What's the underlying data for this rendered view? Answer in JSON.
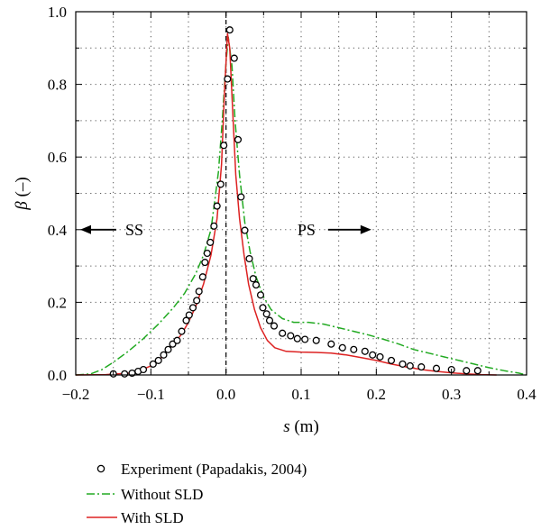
{
  "chart_data": {
    "type": "line",
    "xlabel": {
      "symbol": "s",
      "unit": " (m)"
    },
    "ylabel": {
      "symbol": "β",
      "unit": " (–)"
    },
    "xlim": [
      -0.2,
      0.4
    ],
    "ylim": [
      0,
      1.0
    ],
    "xticks": [
      -0.2,
      -0.1,
      0.0,
      0.1,
      0.2,
      0.3,
      0.4
    ],
    "yticks": [
      0.0,
      0.2,
      0.4,
      0.6,
      0.8,
      1.0
    ],
    "xtick_labels": [
      "−0.2",
      "−0.1",
      "0.0",
      "0.1",
      "0.2",
      "0.3",
      "0.4"
    ],
    "ytick_labels": [
      "0.0",
      "0.2",
      "0.4",
      "0.6",
      "0.8",
      "1.0"
    ],
    "grid": true,
    "legend_position": "bottom",
    "annotations": [
      {
        "text": "SS",
        "x": -0.11,
        "y": 0.4,
        "arrow": "left"
      },
      {
        "text": "PS",
        "x": 0.095,
        "y": 0.4,
        "arrow": "right"
      }
    ],
    "reference_line": {
      "x": 0.0,
      "style": "dashed"
    },
    "series": [
      {
        "name": "Experiment (Papadakis, 2004)",
        "kind": "markers",
        "color": "#000000",
        "points": [
          [
            -0.15,
            0.003
          ],
          [
            -0.135,
            0.003
          ],
          [
            -0.125,
            0.005
          ],
          [
            -0.117,
            0.01
          ],
          [
            -0.11,
            0.015
          ],
          [
            -0.097,
            0.03
          ],
          [
            -0.09,
            0.04
          ],
          [
            -0.083,
            0.055
          ],
          [
            -0.077,
            0.07
          ],
          [
            -0.071,
            0.085
          ],
          [
            -0.065,
            0.095
          ],
          [
            -0.059,
            0.12
          ],
          [
            -0.053,
            0.15
          ],
          [
            -0.049,
            0.165
          ],
          [
            -0.044,
            0.185
          ],
          [
            -0.039,
            0.205
          ],
          [
            -0.036,
            0.23
          ],
          [
            -0.031,
            0.27
          ],
          [
            -0.028,
            0.31
          ],
          [
            -0.025,
            0.335
          ],
          [
            -0.021,
            0.365
          ],
          [
            -0.016,
            0.41
          ],
          [
            -0.012,
            0.465
          ],
          [
            -0.007,
            0.525
          ],
          [
            -0.003,
            0.632
          ],
          [
            0.002,
            0.815
          ],
          [
            0.005,
            0.95
          ],
          [
            0.011,
            0.872
          ],
          [
            0.016,
            0.648
          ],
          [
            0.02,
            0.49
          ],
          [
            0.025,
            0.398
          ],
          [
            0.031,
            0.32
          ],
          [
            0.036,
            0.265
          ],
          [
            0.04,
            0.248
          ],
          [
            0.046,
            0.22
          ],
          [
            0.049,
            0.185
          ],
          [
            0.054,
            0.168
          ],
          [
            0.058,
            0.15
          ],
          [
            0.064,
            0.135
          ],
          [
            0.075,
            0.115
          ],
          [
            0.086,
            0.108
          ],
          [
            0.095,
            0.1
          ],
          [
            0.105,
            0.098
          ],
          [
            0.12,
            0.095
          ],
          [
            0.14,
            0.085
          ],
          [
            0.155,
            0.075
          ],
          [
            0.17,
            0.07
          ],
          [
            0.185,
            0.065
          ],
          [
            0.195,
            0.055
          ],
          [
            0.205,
            0.05
          ],
          [
            0.22,
            0.04
          ],
          [
            0.235,
            0.03
          ],
          [
            0.245,
            0.025
          ],
          [
            0.26,
            0.022
          ],
          [
            0.28,
            0.018
          ],
          [
            0.3,
            0.015
          ],
          [
            0.32,
            0.012
          ],
          [
            0.335,
            0.012
          ]
        ]
      },
      {
        "name": "Without SLD",
        "kind": "line",
        "style": "dashdot",
        "color": "#22aa22",
        "points": [
          [
            -0.2,
            0.0
          ],
          [
            -0.18,
            0.003
          ],
          [
            -0.165,
            0.015
          ],
          [
            -0.15,
            0.035
          ],
          [
            -0.13,
            0.065
          ],
          [
            -0.11,
            0.1
          ],
          [
            -0.09,
            0.14
          ],
          [
            -0.07,
            0.185
          ],
          [
            -0.055,
            0.225
          ],
          [
            -0.04,
            0.28
          ],
          [
            -0.03,
            0.33
          ],
          [
            -0.02,
            0.4
          ],
          [
            -0.015,
            0.48
          ],
          [
            -0.01,
            0.56
          ],
          [
            -0.005,
            0.7
          ],
          [
            0.0,
            0.86
          ],
          [
            0.003,
            0.93
          ],
          [
            0.008,
            0.85
          ],
          [
            0.012,
            0.7
          ],
          [
            0.018,
            0.55
          ],
          [
            0.025,
            0.42
          ],
          [
            0.032,
            0.34
          ],
          [
            0.04,
            0.27
          ],
          [
            0.05,
            0.215
          ],
          [
            0.06,
            0.18
          ],
          [
            0.075,
            0.155
          ],
          [
            0.09,
            0.145
          ],
          [
            0.11,
            0.145
          ],
          [
            0.13,
            0.14
          ],
          [
            0.15,
            0.13
          ],
          [
            0.17,
            0.12
          ],
          [
            0.19,
            0.11
          ],
          [
            0.21,
            0.098
          ],
          [
            0.23,
            0.085
          ],
          [
            0.25,
            0.07
          ],
          [
            0.27,
            0.06
          ],
          [
            0.29,
            0.05
          ],
          [
            0.31,
            0.04
          ],
          [
            0.33,
            0.03
          ],
          [
            0.35,
            0.02
          ],
          [
            0.37,
            0.012
          ],
          [
            0.39,
            0.005
          ],
          [
            0.4,
            0.0
          ]
        ]
      },
      {
        "name": "With SLD",
        "kind": "line",
        "style": "solid",
        "color": "#dd2222",
        "points": [
          [
            -0.2,
            0.0
          ],
          [
            -0.16,
            0.001
          ],
          [
            -0.13,
            0.005
          ],
          [
            -0.115,
            0.012
          ],
          [
            -0.1,
            0.025
          ],
          [
            -0.09,
            0.04
          ],
          [
            -0.08,
            0.06
          ],
          [
            -0.07,
            0.085
          ],
          [
            -0.06,
            0.11
          ],
          [
            -0.05,
            0.145
          ],
          [
            -0.04,
            0.19
          ],
          [
            -0.03,
            0.25
          ],
          [
            -0.02,
            0.33
          ],
          [
            -0.012,
            0.43
          ],
          [
            -0.006,
            0.58
          ],
          [
            -0.002,
            0.78
          ],
          [
            0.002,
            0.94
          ],
          [
            0.005,
            0.9
          ],
          [
            0.009,
            0.72
          ],
          [
            0.013,
            0.55
          ],
          [
            0.018,
            0.43
          ],
          [
            0.024,
            0.33
          ],
          [
            0.03,
            0.25
          ],
          [
            0.038,
            0.18
          ],
          [
            0.046,
            0.13
          ],
          [
            0.055,
            0.095
          ],
          [
            0.065,
            0.075
          ],
          [
            0.08,
            0.065
          ],
          [
            0.1,
            0.063
          ],
          [
            0.12,
            0.062
          ],
          [
            0.14,
            0.06
          ],
          [
            0.16,
            0.055
          ],
          [
            0.18,
            0.048
          ],
          [
            0.2,
            0.04
          ],
          [
            0.22,
            0.03
          ],
          [
            0.24,
            0.022
          ],
          [
            0.26,
            0.015
          ],
          [
            0.28,
            0.01
          ],
          [
            0.3,
            0.006
          ],
          [
            0.32,
            0.003
          ],
          [
            0.34,
            0.001
          ],
          [
            0.36,
            0.0
          ]
        ]
      }
    ]
  }
}
